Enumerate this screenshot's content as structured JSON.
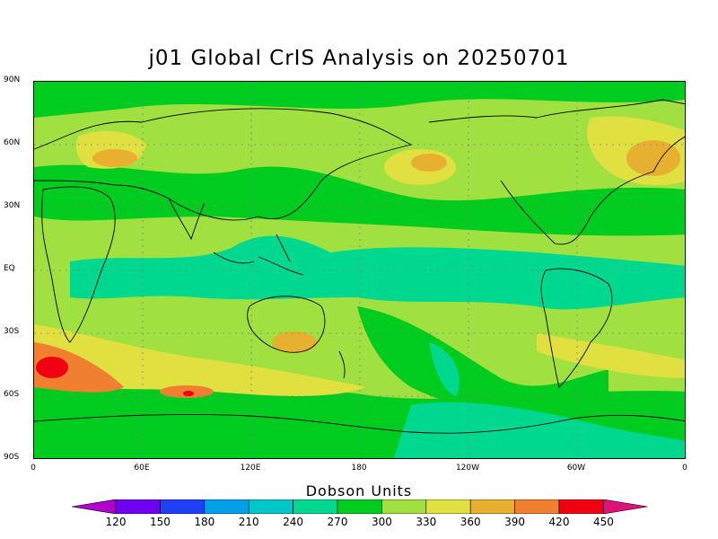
{
  "title": "j01 Global CrIS Analysis on 20250701",
  "axes": {
    "lat_labels": [
      "90N",
      "60N",
      "30N",
      "EQ",
      "30S",
      "60S",
      "90S"
    ],
    "lon_labels": [
      "0",
      "60E",
      "120E",
      "180",
      "120W",
      "60W",
      "0"
    ]
  },
  "colorbar": {
    "title": "Dobson Units",
    "labels": [
      "120",
      "150",
      "180",
      "210",
      "240",
      "270",
      "300",
      "330",
      "360",
      "390",
      "420",
      "450"
    ],
    "colors": [
      "#b000d0",
      "#7000f0",
      "#2040f8",
      "#00a0e8",
      "#00c8c8",
      "#00d890",
      "#00cc20",
      "#a0e040",
      "#e0e040",
      "#e8b030",
      "#f08030",
      "#f00010",
      "#e0107a"
    ]
  },
  "field_colors": {
    "low_teal": "#00d890",
    "mid_green": "#00cc20",
    "light_green": "#a0e040",
    "yellow": "#e0e040",
    "orange": "#e8b030",
    "dark_orange": "#f08030",
    "red": "#f00010"
  }
}
